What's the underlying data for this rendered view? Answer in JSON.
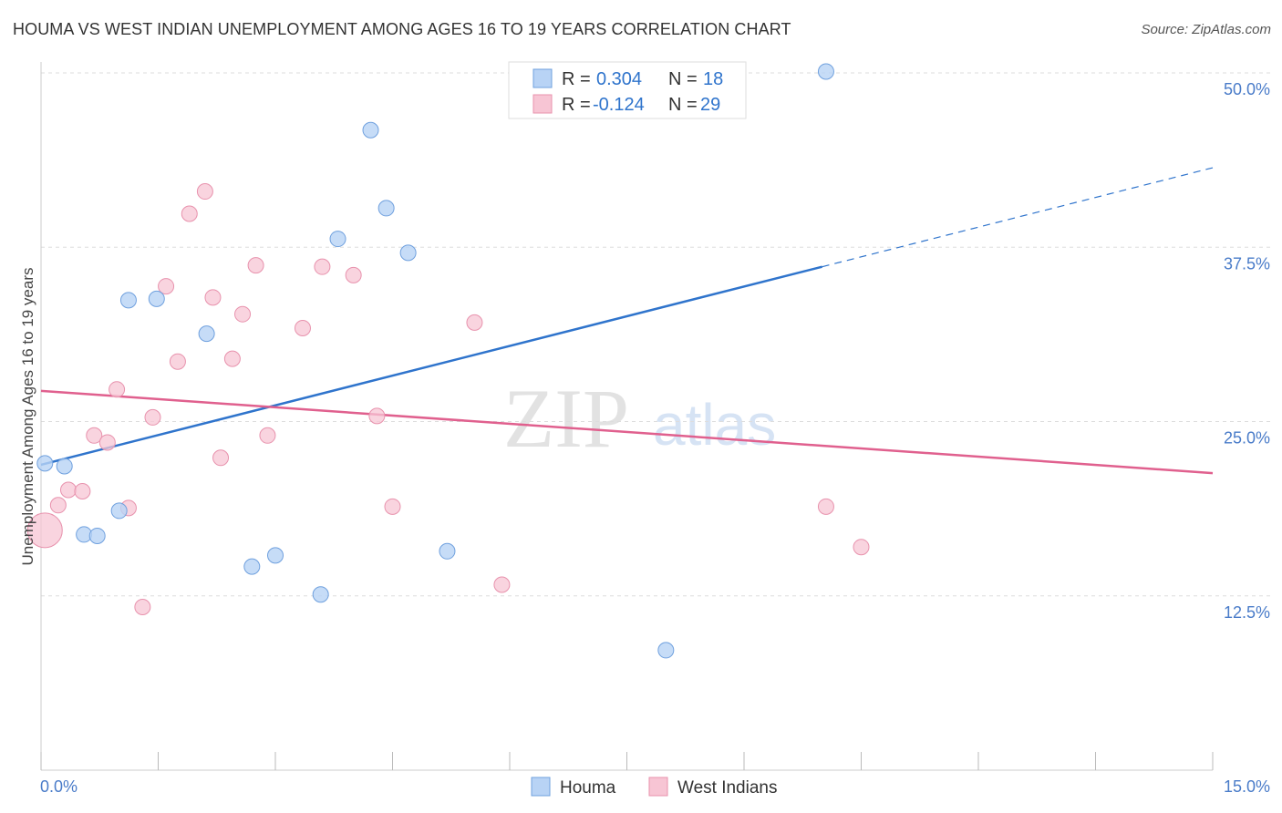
{
  "title": "HOUMA VS WEST INDIAN UNEMPLOYMENT AMONG AGES 16 TO 19 YEARS CORRELATION CHART",
  "source": "Source: ZipAtlas.com",
  "watermark": {
    "zip": "ZIP",
    "atlas": "atlas"
  },
  "colors": {
    "houma_fill": "#b8d3f5",
    "houma_stroke": "#6fa0de",
    "houma_line": "#2f74cc",
    "wi_fill": "#f7c5d4",
    "wi_stroke": "#e892ad",
    "wi_line": "#e0608e",
    "axis_text": "#4a7cc9",
    "grid": "#dddddd"
  },
  "legend": {
    "rows": [
      {
        "r_label": "R = ",
        "r_value": "0.304",
        "n_label": "N = ",
        "n_value": "18"
      },
      {
        "r_label": "R = ",
        "r_value": "-0.124",
        "n_label": "N = ",
        "n_value": "29"
      }
    ]
  },
  "chart_data": {
    "type": "scatter",
    "title": "HOUMA VS WEST INDIAN UNEMPLOYMENT AMONG AGES 16 TO 19 YEARS CORRELATION CHART",
    "xlabel": "",
    "ylabel": "Unemployment Among Ages 16 to 19 years",
    "xlim": [
      0,
      15
    ],
    "ylim": [
      0,
      50
    ],
    "x_tick_labels": [
      "0.0%",
      "15.0%"
    ],
    "y_ticks": [
      12.5,
      25.0,
      37.5,
      50.0
    ],
    "y_tick_labels": [
      "12.5%",
      "25.0%",
      "37.5%",
      "50.0%"
    ],
    "grid": true,
    "legend_position": "top-center",
    "series": [
      {
        "name": "Houma",
        "points": [
          {
            "x": 0.05,
            "y": 22.0
          },
          {
            "x": 0.3,
            "y": 21.8
          },
          {
            "x": 0.55,
            "y": 16.9
          },
          {
            "x": 0.72,
            "y": 16.8
          },
          {
            "x": 1.0,
            "y": 18.6
          },
          {
            "x": 1.12,
            "y": 33.7
          },
          {
            "x": 1.48,
            "y": 33.8
          },
          {
            "x": 2.12,
            "y": 31.3
          },
          {
            "x": 2.7,
            "y": 14.6
          },
          {
            "x": 3.0,
            "y": 15.4
          },
          {
            "x": 3.58,
            "y": 12.6
          },
          {
            "x": 3.8,
            "y": 38.1
          },
          {
            "x": 4.22,
            "y": 45.9
          },
          {
            "x": 4.42,
            "y": 40.3
          },
          {
            "x": 4.7,
            "y": 37.1
          },
          {
            "x": 5.2,
            "y": 15.7
          },
          {
            "x": 8.0,
            "y": 8.6
          },
          {
            "x": 10.05,
            "y": 50.1
          }
        ],
        "trend": {
          "x1": 0,
          "y1": 21.9,
          "x2": 10.0,
          "y2": 36.1,
          "dashed_to_x": 15.0,
          "dashed_to_y": 43.2
        }
      },
      {
        "name": "West Indians",
        "points": [
          {
            "x": 0.05,
            "y": 17.2,
            "size": "large"
          },
          {
            "x": 0.22,
            "y": 19.0
          },
          {
            "x": 0.35,
            "y": 20.1
          },
          {
            "x": 0.53,
            "y": 20.0
          },
          {
            "x": 0.68,
            "y": 24.0
          },
          {
            "x": 0.85,
            "y": 23.5
          },
          {
            "x": 0.97,
            "y": 27.3
          },
          {
            "x": 1.12,
            "y": 18.8
          },
          {
            "x": 1.3,
            "y": 11.7
          },
          {
            "x": 1.43,
            "y": 25.3
          },
          {
            "x": 1.6,
            "y": 34.7
          },
          {
            "x": 1.75,
            "y": 29.3
          },
          {
            "x": 1.9,
            "y": 39.9
          },
          {
            "x": 2.1,
            "y": 41.5
          },
          {
            "x": 2.2,
            "y": 33.9
          },
          {
            "x": 2.3,
            "y": 22.4
          },
          {
            "x": 2.45,
            "y": 29.5
          },
          {
            "x": 2.58,
            "y": 32.7
          },
          {
            "x": 2.75,
            "y": 36.2
          },
          {
            "x": 2.9,
            "y": 24.0
          },
          {
            "x": 3.35,
            "y": 31.7
          },
          {
            "x": 3.6,
            "y": 36.1
          },
          {
            "x": 4.0,
            "y": 35.5
          },
          {
            "x": 4.3,
            "y": 25.4
          },
          {
            "x": 4.5,
            "y": 18.9
          },
          {
            "x": 5.55,
            "y": 32.1
          },
          {
            "x": 5.9,
            "y": 13.3
          },
          {
            "x": 10.05,
            "y": 18.9
          },
          {
            "x": 10.5,
            "y": 16.0
          }
        ],
        "trend": {
          "x1": 0,
          "y1": 27.2,
          "x2": 15.0,
          "y2": 21.3
        }
      }
    ]
  }
}
